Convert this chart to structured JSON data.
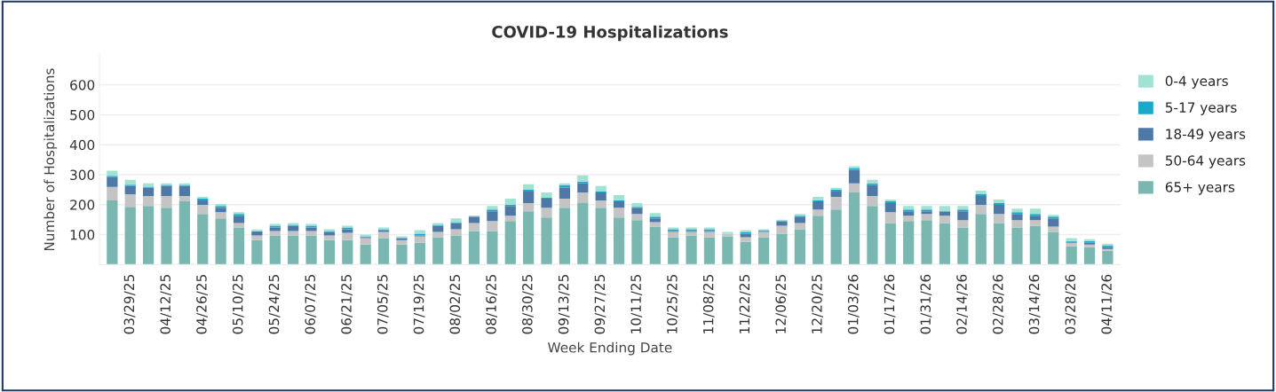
{
  "chart_data": {
    "type": "bar",
    "stacked": true,
    "title": "COVID-19 Hospitalizations",
    "xlabel": "Week Ending Date",
    "ylabel": "Number of Hospitalizations",
    "categories": [
      null,
      "03/29/25",
      null,
      "04/12/25",
      null,
      "04/26/25",
      null,
      "05/10/25",
      null,
      "05/24/25",
      null,
      "06/07/25",
      null,
      "06/21/25",
      null,
      "07/05/25",
      null,
      "07/19/25",
      null,
      "08/02/25",
      null,
      "08/16/25",
      null,
      "08/30/25",
      null,
      "09/13/25",
      null,
      "09/27/25",
      null,
      "10/11/25",
      null,
      "10/25/25",
      null,
      "11/08/25",
      null,
      "11/22/25",
      null,
      "12/06/25",
      null,
      "12/20/25",
      null,
      "01/03/26",
      null,
      "01/17/26",
      null,
      "01/31/26",
      null,
      "02/14/26",
      null,
      "02/28/26",
      null,
      "03/14/26",
      null,
      "03/28/26",
      null,
      "04/11/26"
    ],
    "series": [
      {
        "name": "65+ years",
        "color": "#79b7b0",
        "values": [
          214,
          193,
          196,
          190,
          211,
          169,
          154,
          124,
          82,
          97,
          97,
          97,
          82,
          82,
          67,
          88,
          67,
          73,
          91,
          97,
          112,
          112,
          145,
          178,
          157,
          190,
          205,
          190,
          157,
          148,
          127,
          91,
          97,
          91,
          94,
          76,
          91,
          103,
          118,
          163,
          184,
          241,
          196,
          139,
          145,
          148,
          139,
          124,
          169,
          139,
          124,
          130,
          109,
          61,
          58,
          46
        ]
      },
      {
        "name": "50-64 years",
        "color": "#c4c4c4",
        "values": [
          45,
          42,
          33,
          39,
          18,
          30,
          21,
          15,
          15,
          15,
          15,
          15,
          15,
          24,
          21,
          21,
          15,
          21,
          18,
          21,
          27,
          33,
          18,
          27,
          33,
          30,
          36,
          24,
          33,
          21,
          15,
          18,
          12,
          18,
          9,
          15,
          18,
          27,
          21,
          21,
          42,
          30,
          33,
          36,
          18,
          21,
          24,
          24,
          30,
          30,
          24,
          18,
          18,
          12,
          9,
          6
        ]
      },
      {
        "name": "18-49 years",
        "color": "#4e79a7",
        "values": [
          33,
          28,
          28,
          34,
          34,
          15,
          15,
          24,
          14,
          12,
          18,
          12,
          12,
          12,
          3,
          6,
          6,
          3,
          21,
          21,
          21,
          33,
          33,
          39,
          30,
          36,
          30,
          27,
          21,
          21,
          12,
          3,
          3,
          3,
          0,
          12,
          3,
          15,
          21,
          27,
          18,
          45,
          36,
          30,
          15,
          9,
          15,
          30,
          30,
          30,
          21,
          15,
          27,
          3,
          6,
          6
        ]
      },
      {
        "name": "5-17 years",
        "color": "#1ba8cc",
        "values": [
          4,
          4,
          3,
          3,
          3,
          6,
          6,
          6,
          null,
          6,
          3,
          6,
          3,
          6,
          3,
          3,
          1,
          6,
          3,
          3,
          null,
          6,
          3,
          6,
          3,
          9,
          6,
          3,
          3,
          3,
          6,
          6,
          6,
          6,
          0,
          6,
          3,
          null,
          3,
          3,
          6,
          6,
          6,
          6,
          6,
          6,
          0,
          6,
          6,
          6,
          6,
          6,
          6,
          3,
          6,
          6
        ]
      },
      {
        "name": "0-4 years",
        "color": "#a0e3d3",
        "values": [
          17,
          16,
          11,
          5,
          5,
          6,
          6,
          6,
          6,
          6,
          6,
          6,
          6,
          6,
          6,
          6,
          5,
          12,
          6,
          12,
          4,
          12,
          21,
          18,
          18,
          6,
          21,
          18,
          18,
          12,
          12,
          6,
          6,
          6,
          6,
          6,
          3,
          5,
          6,
          12,
          6,
          6,
          12,
          6,
          12,
          12,
          18,
          12,
          12,
          12,
          12,
          18,
          6,
          9,
          6,
          6
        ]
      }
    ],
    "ylim": [
      0,
      700
    ],
    "yticks": [
      100,
      200,
      300,
      400,
      500,
      600
    ],
    "grid": "y",
    "legend": "right"
  }
}
